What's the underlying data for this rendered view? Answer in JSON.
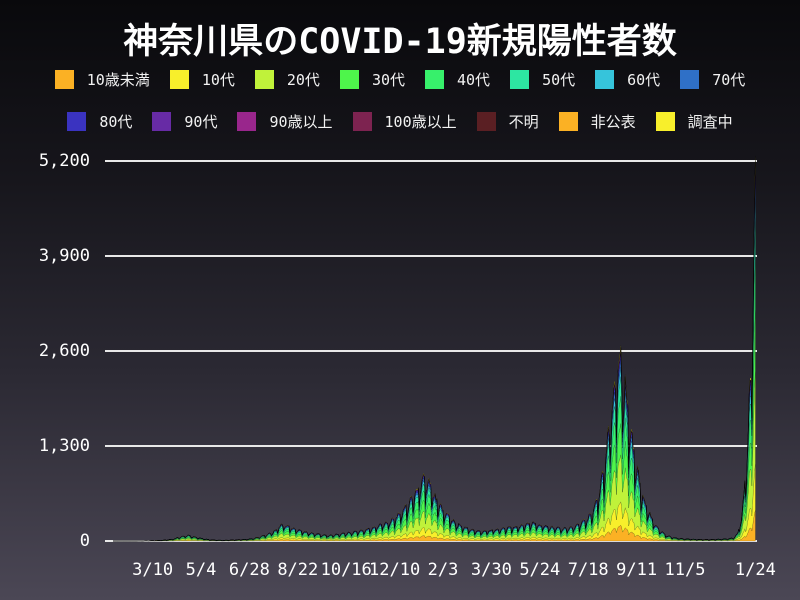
{
  "chart_data": {
    "type": "area",
    "stacked": true,
    "title": "神奈川県のCOVID-19新規陽性者数",
    "x_axis": {
      "tick_labels": [
        "3/10",
        "5/4",
        "6/28",
        "8/22",
        "10/16",
        "12/10",
        "2/3",
        "3/30",
        "5/24",
        "7/18",
        "9/11",
        "11/5",
        "1/24"
      ],
      "tick_day_index": [
        45,
        100,
        155,
        210,
        265,
        320,
        375,
        430,
        485,
        540,
        595,
        650,
        730
      ],
      "total_days": 730
    },
    "y_axis": {
      "tick_labels": [
        "0",
        "1,300",
        "2,600",
        "3,900",
        "5,200"
      ],
      "tick_values": [
        0,
        1300,
        2600,
        3900,
        5200
      ],
      "max": 5270
    },
    "sample_step_days": 5,
    "total_envelope": [
      1,
      1,
      2,
      1,
      2,
      2,
      3,
      4,
      5,
      6,
      8,
      10,
      14,
      22,
      35,
      55,
      70,
      88,
      70,
      55,
      40,
      28,
      18,
      14,
      12,
      10,
      12,
      14,
      17,
      20,
      24,
      30,
      40,
      55,
      75,
      95,
      125,
      155,
      230,
      245,
      215,
      185,
      165,
      145,
      130,
      120,
      110,
      100,
      90,
      82,
      90,
      98,
      108,
      118,
      128,
      138,
      148,
      158,
      175,
      195,
      225,
      248,
      268,
      295,
      345,
      395,
      470,
      545,
      640,
      745,
      900,
      955,
      840,
      680,
      560,
      460,
      385,
      320,
      268,
      228,
      198,
      178,
      158,
      148,
      140,
      148,
      158,
      168,
      178,
      188,
      198,
      208,
      218,
      228,
      250,
      270,
      260,
      240,
      228,
      215,
      205,
      195,
      185,
      195,
      205,
      225,
      250,
      300,
      350,
      450,
      600,
      900,
      1300,
      1800,
      2300,
      2800,
      2500,
      2000,
      1500,
      1100,
      800,
      550,
      400,
      280,
      180,
      120,
      80,
      58,
      45,
      35,
      30,
      28,
      25,
      24,
      22,
      20,
      22,
      24,
      27,
      30,
      35,
      45,
      120,
      400,
      1200,
      2600,
      5270
    ],
    "weekly_pattern": [
      0.92,
      0.58,
      0.72,
      0.85,
      0.95,
      1.0,
      0.97
    ],
    "weekly_phase": 3,
    "series": [
      {
        "label": "10歳未満",
        "color": "#fbb124",
        "fraction": 0.08
      },
      {
        "label": "10代",
        "color": "#f8ef2b",
        "fraction": 0.12
      },
      {
        "label": "20代",
        "color": "#c0f23a",
        "fraction": 0.24
      },
      {
        "label": "30代",
        "color": "#4ef54b",
        "fraction": 0.16
      },
      {
        "label": "40代",
        "color": "#37f06b",
        "fraction": 0.14
      },
      {
        "label": "50代",
        "color": "#2de6a2",
        "fraction": 0.1
      },
      {
        "label": "60代",
        "color": "#36c4db",
        "fraction": 0.05
      },
      {
        "label": "70代",
        "color": "#2f70c7",
        "fraction": 0.04
      },
      {
        "label": "80代",
        "color": "#3a33c0",
        "fraction": 0.03
      },
      {
        "label": "90代",
        "color": "#672ba5",
        "fraction": 0.02
      },
      {
        "label": "90歳以上",
        "color": "#99268c",
        "fraction": 0.005
      },
      {
        "label": "100歳以上",
        "color": "#7d2350",
        "fraction": 0.001
      },
      {
        "label": "不明",
        "color": "#5a1f23",
        "fraction": 0.002
      },
      {
        "label": "非公表",
        "color": "#fbb124",
        "fraction": 0.002
      },
      {
        "label": "調査中",
        "color": "#f8ef2b",
        "fraction": 0.01
      }
    ],
    "legend_rows": [
      8,
      7
    ],
    "colors": {
      "background_top": "#09090c",
      "background_bottom": "#4b4755",
      "grid": "#e8e8e8",
      "text": "#ffffff"
    }
  }
}
